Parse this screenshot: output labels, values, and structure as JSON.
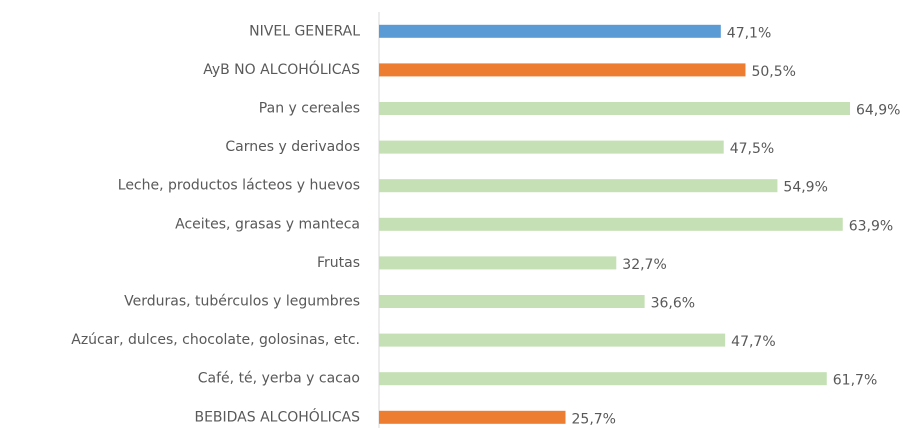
{
  "chart_data": {
    "type": "barh",
    "categories": [
      "NIVEL GENERAL",
      "AyB NO ALCOHÓLICAS",
      "Pan y cereales",
      "Carnes y derivados",
      "Leche, productos lácteos y huevos",
      "Aceites, grasas y manteca",
      "Frutas",
      "Verduras, tubérculos y legumbres",
      "Azúcar, dulces, chocolate, golosinas, etc.",
      "Café, té, yerba y cacao",
      "BEBIDAS ALCOHÓLICAS"
    ],
    "values": [
      47.1,
      50.5,
      64.9,
      47.5,
      54.9,
      63.9,
      32.7,
      36.6,
      47.7,
      61.7,
      25.7
    ],
    "value_labels": [
      "47,1%",
      "50,5%",
      "64,9%",
      "47,5%",
      "54,9%",
      "63,9%",
      "32,7%",
      "36,6%",
      "47,7%",
      "61,7%",
      "25,7%"
    ],
    "colors": [
      "#5b9bd5",
      "#ed7d31",
      "#c5e0b4",
      "#c5e0b4",
      "#c5e0b4",
      "#c5e0b4",
      "#c5e0b4",
      "#c5e0b4",
      "#c5e0b4",
      "#c5e0b4",
      "#ed7d31"
    ],
    "xlim": [
      0,
      70
    ]
  }
}
